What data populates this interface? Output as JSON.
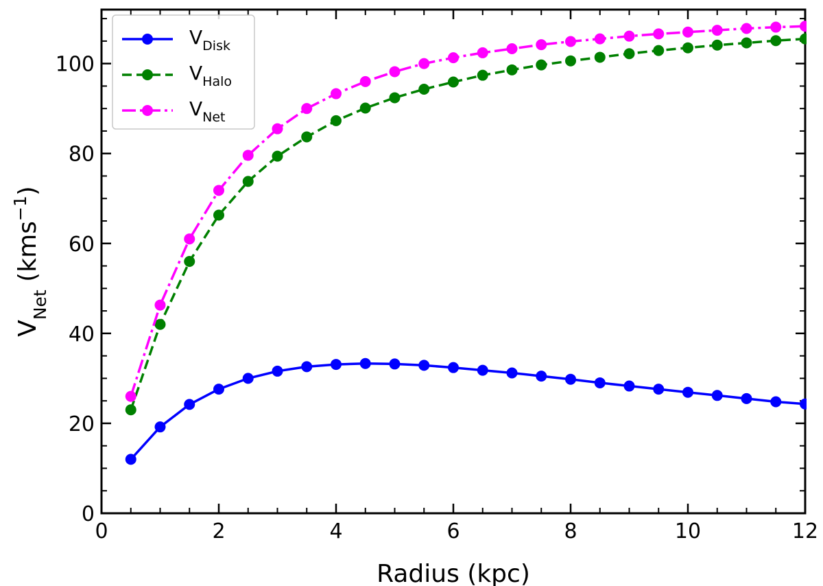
{
  "chart_data": {
    "type": "line",
    "title": "",
    "xlabel": "Radius (kpc)",
    "ylabel": "V",
    "ylabel_sub": "Net",
    "ylabel_unit": " (kms",
    "ylabel_unit_sup": "−1",
    "ylabel_unit_close": ")",
    "xlim": [
      0,
      12
    ],
    "ylim": [
      0,
      112
    ],
    "xticks": [
      0,
      2,
      4,
      6,
      8,
      10,
      12
    ],
    "yticks": [
      0,
      20,
      40,
      60,
      80,
      100
    ],
    "grid": false,
    "legend_position": "top-left",
    "x": [
      0.5,
      1.0,
      1.5,
      2.0,
      2.5,
      3.0,
      3.5,
      4.0,
      4.5,
      5.0,
      5.5,
      6.0,
      6.5,
      7.0,
      7.5,
      8.0,
      8.5,
      9.0,
      9.5,
      10.0,
      10.5,
      11.0,
      11.5,
      12.0
    ],
    "series": [
      {
        "name": "V",
        "name_sub": "Disk",
        "color": "#0000ff",
        "linestyle": "solid",
        "values": [
          12.0,
          19.2,
          24.2,
          27.6,
          30.0,
          31.6,
          32.6,
          33.1,
          33.3,
          33.2,
          32.9,
          32.4,
          31.8,
          31.2,
          30.5,
          29.8,
          29.0,
          28.3,
          27.6,
          26.9,
          26.2,
          25.5,
          24.8,
          24.3
        ]
      },
      {
        "name": "V",
        "name_sub": "Halo",
        "color": "#008000",
        "linestyle": "dashed",
        "values": [
          23.0,
          42.0,
          56.0,
          66.3,
          73.8,
          79.4,
          83.7,
          87.3,
          90.1,
          92.4,
          94.3,
          95.9,
          97.4,
          98.6,
          99.7,
          100.6,
          101.4,
          102.2,
          102.9,
          103.5,
          104.1,
          104.6,
          105.1,
          105.5
        ]
      },
      {
        "name": "V",
        "name_sub": "Net",
        "color": "#ff00ff",
        "linestyle": "dashdot",
        "values": [
          26.0,
          46.3,
          61.0,
          71.8,
          79.6,
          85.5,
          90.0,
          93.3,
          96.0,
          98.2,
          100.0,
          101.3,
          102.4,
          103.3,
          104.2,
          104.9,
          105.5,
          106.1,
          106.6,
          107.0,
          107.4,
          107.8,
          108.1,
          108.3
        ]
      }
    ]
  }
}
